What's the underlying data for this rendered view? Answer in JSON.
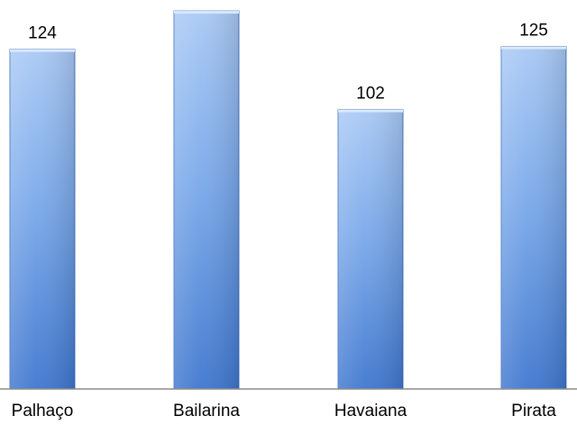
{
  "chart_data": {
    "type": "bar",
    "categories": [
      "Palhaço",
      "Bailarina",
      "Havaiana",
      "Pirata"
    ],
    "values": [
      124,
      138,
      102,
      125
    ],
    "title": "",
    "xlabel": "",
    "ylabel": "",
    "ylim": [
      0,
      140
    ],
    "grid": false,
    "legend": "none",
    "data_labels": true,
    "colors": {
      "bar_top": "#a9c9f5",
      "bar_mid": "#7aa9ea",
      "bar_bottom": "#3f77cf",
      "bar_edge": "#2f63b8",
      "axis": "#8c8c8c"
    }
  }
}
